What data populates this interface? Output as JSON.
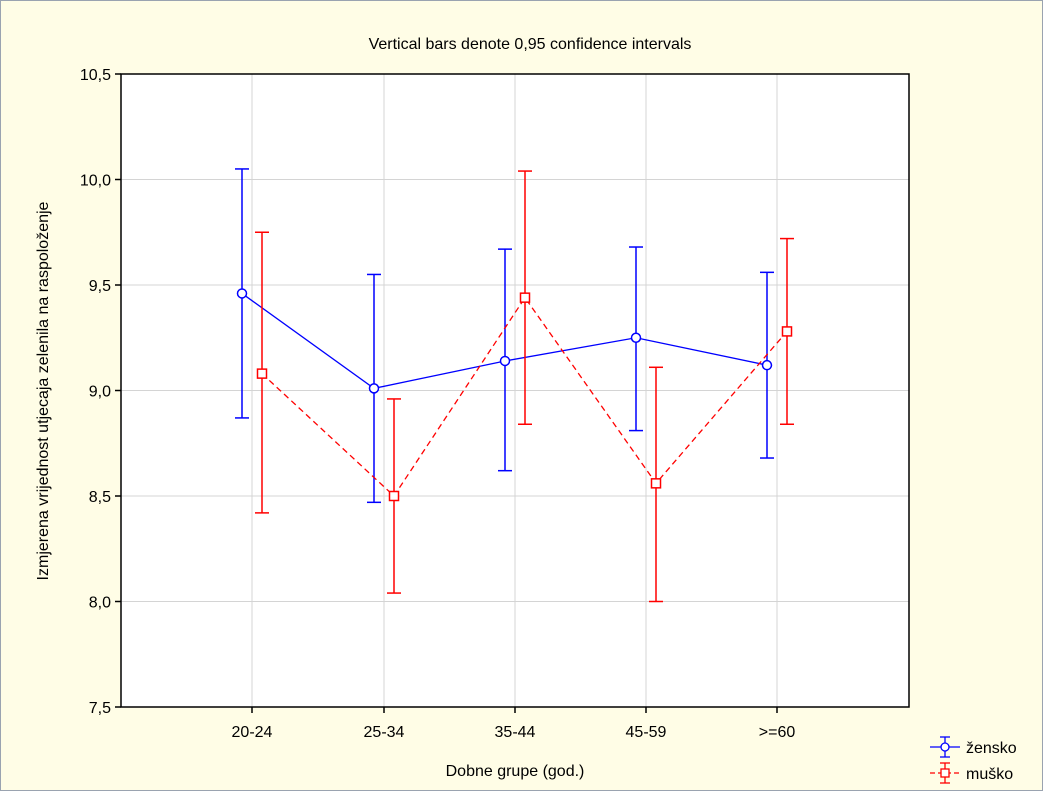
{
  "chart_data": {
    "type": "line",
    "title": "Vertical bars denote 0,95 confidence intervals",
    "xlabel": "Dobne grupe (god.)",
    "ylabel": "Izmjerena vrijednost utjecaja zelenila na raspoloženje",
    "categories": [
      "20-24",
      "25-34",
      "35-44",
      "45-59",
      ">=60"
    ],
    "ylim": [
      7.5,
      10.5
    ],
    "yticks": [
      7.5,
      8.0,
      8.5,
      9.0,
      9.5,
      10.0,
      10.5
    ],
    "ytick_labels": [
      "7,5",
      "8,0",
      "8,5",
      "9,0",
      "9,5",
      "10,0",
      "10,5"
    ],
    "grid": true,
    "legend_position": "bottom-right",
    "series": [
      {
        "name": "žensko",
        "color": "#0000ff",
        "line_style": "solid",
        "marker": "circle",
        "values": [
          9.46,
          9.01,
          9.14,
          9.25,
          9.12
        ],
        "ci_low": [
          8.87,
          8.47,
          8.62,
          8.81,
          8.68
        ],
        "ci_high": [
          10.05,
          9.55,
          9.67,
          9.68,
          9.56
        ]
      },
      {
        "name": "muško",
        "color": "#ff0000",
        "line_style": "dashed",
        "marker": "square",
        "values": [
          9.08,
          8.5,
          9.44,
          8.56,
          9.28
        ],
        "ci_low": [
          8.42,
          8.04,
          8.84,
          8.0,
          8.84
        ],
        "ci_high": [
          9.75,
          8.96,
          10.04,
          9.11,
          9.72
        ]
      }
    ]
  }
}
